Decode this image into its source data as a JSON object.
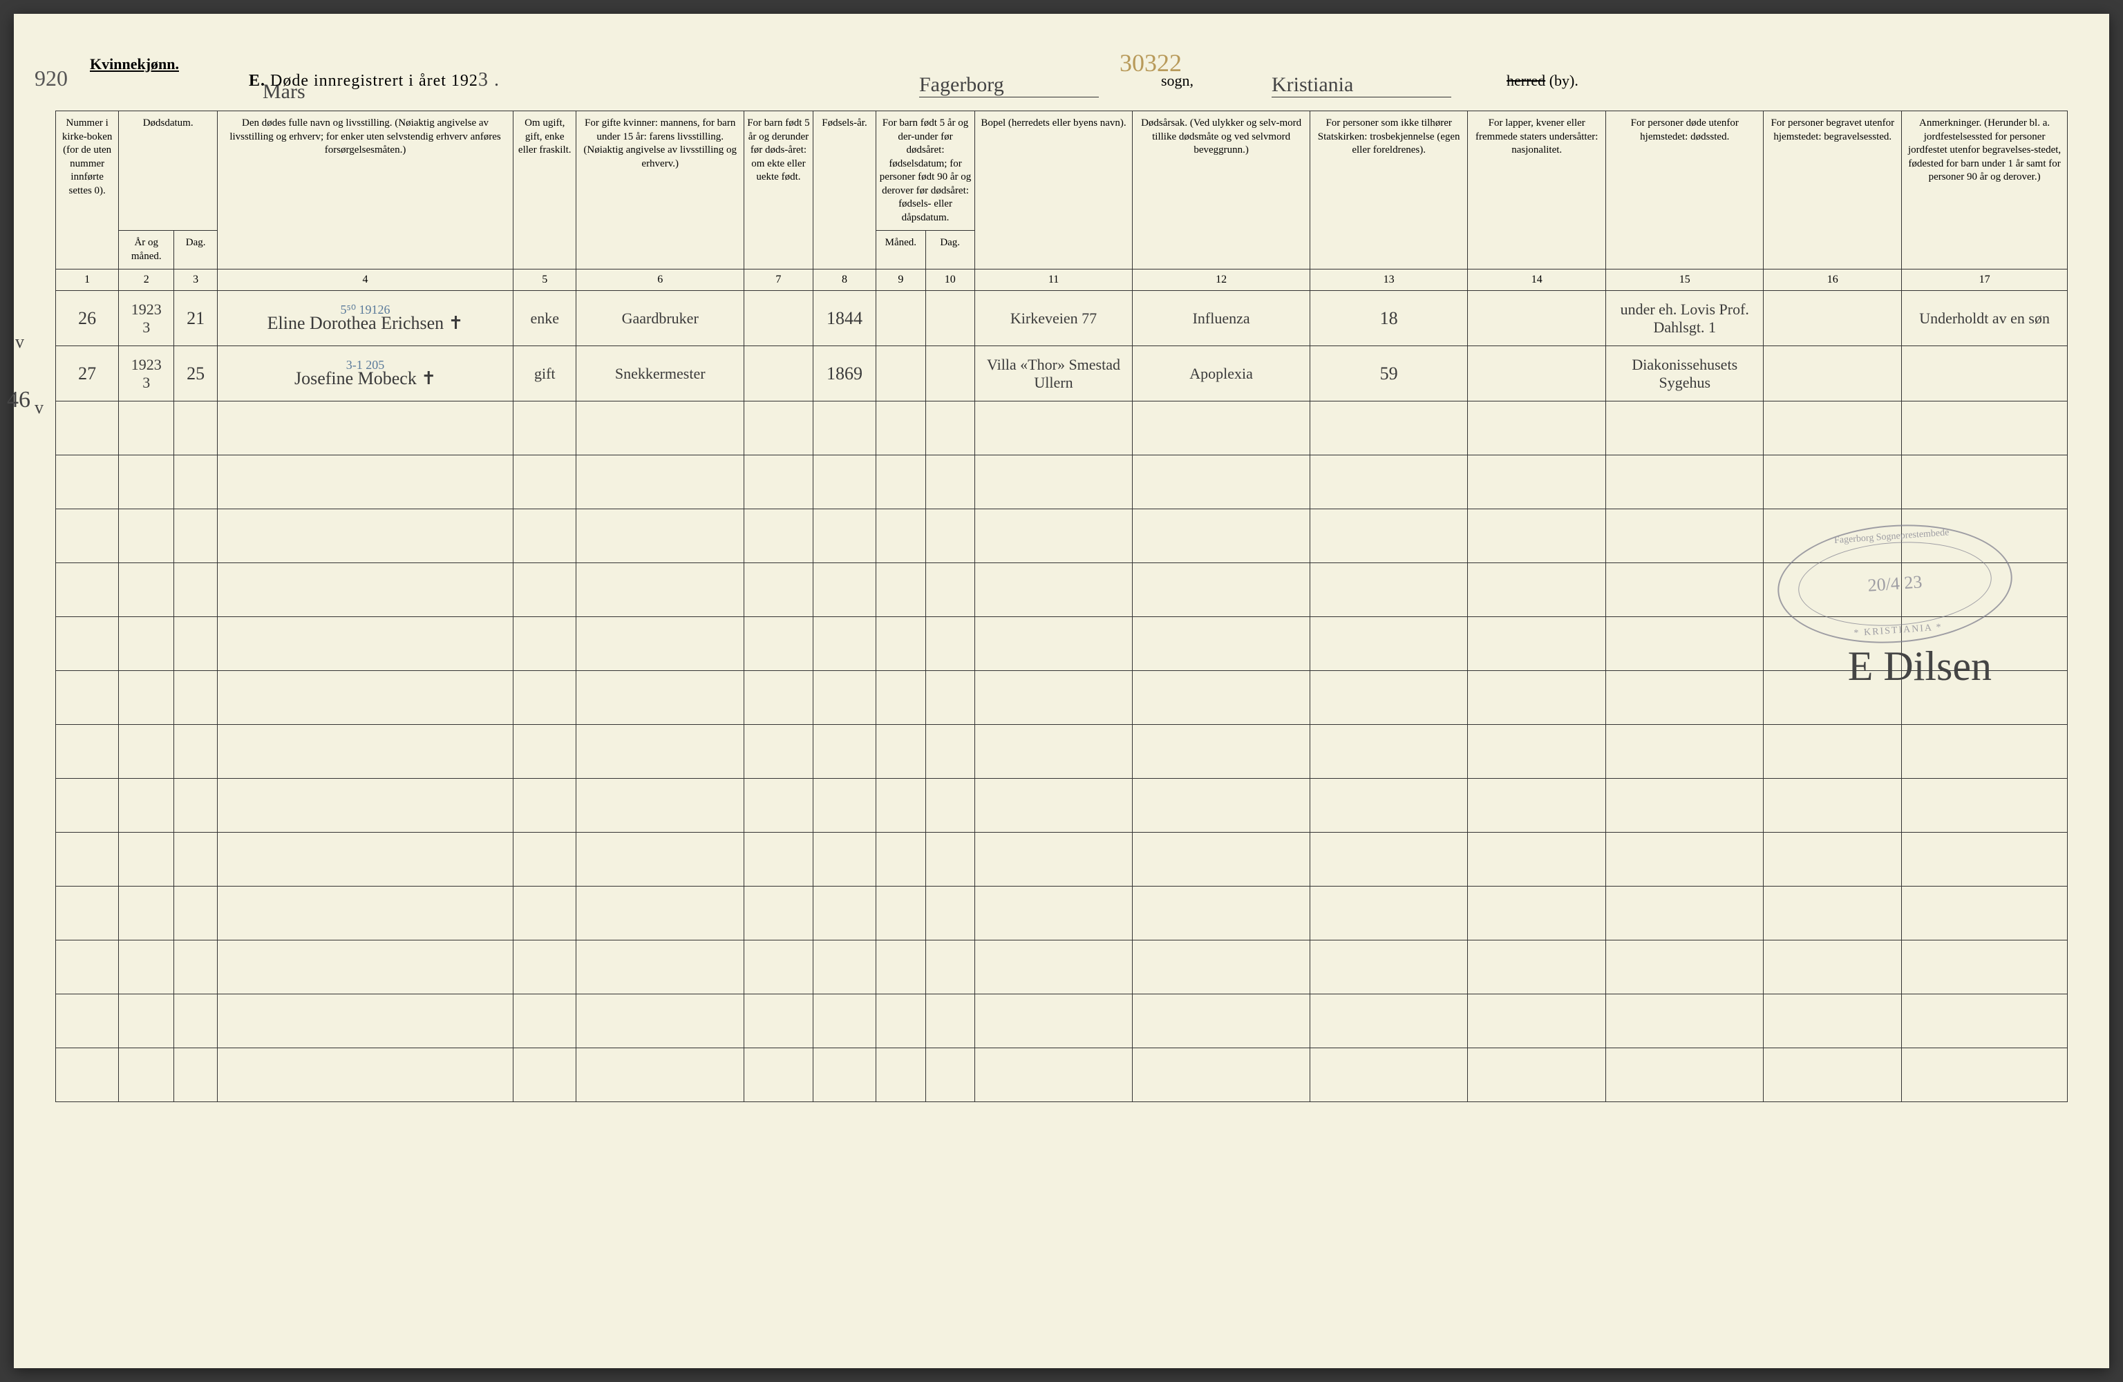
{
  "header": {
    "gender_label": "Kvinnekjønn.",
    "margin_number": "920",
    "title_prefix": "E.",
    "title_text": "Døde innregistrert i året 192",
    "year_suffix_hw": "3 .",
    "month_hw": "Mars",
    "sogn_hw": "Fagerborg",
    "sogn_label": "sogn,",
    "page_number_hw": "30322",
    "herred_hw": "Kristiania",
    "herred_strike": "herred",
    "herred_label": " (by)."
  },
  "columns": {
    "c1": "Nummer i kirke-boken (for de uten nummer innførte settes 0).",
    "c2a": "Dødsdatum.",
    "c2b_year": "År og måned.",
    "c2b_day": "Dag.",
    "c4": "Den dødes fulle navn og livsstilling. (Nøiaktig angivelse av livsstilling og erhverv; for enker uten selvstendig erhverv anføres forsørgelsesmåten.)",
    "c5": "Om ugift, gift, enke eller fraskilt.",
    "c6": "For gifte kvinner: mannens, for barn under 15 år: farens livsstilling. (Nøiaktig angivelse av livsstilling og erhverv.)",
    "c7": "For barn født 5 år og derunder før døds-året: om ekte eller uekte født.",
    "c8": "Fødsels-år.",
    "c9_10": "For barn født 5 år og der-under før dødsåret: fødselsdatum; for personer født 90 år og derover før dødsåret: fødsels- eller dåpsdatum.",
    "c9": "Måned.",
    "c10": "Dag.",
    "c11": "Bopel (herredets eller byens navn).",
    "c12": "Dødsårsak. (Ved ulykker og selv-mord tillike dødsmåte og ved selvmord beveggrunn.)",
    "c13": "For personer som ikke tilhører Statskirken: trosbekjennelse (egen eller foreldrenes).",
    "c14": "For lapper, kvener eller fremmede staters undersåtter: nasjonalitet.",
    "c15": "For personer døde utenfor hjemstedet: dødssted.",
    "c16": "For personer begravet utenfor hjemstedet: begravelsessted.",
    "c17": "Anmerkninger. (Herunder bl. a. jordfestelsessted for personer jordfestet utenfor begravelses-stedet, fødested for barn under 1 år samt for personer 90 år og derover.)"
  },
  "colnums": [
    "1",
    "2",
    "3",
    "4",
    "5",
    "6",
    "7",
    "8",
    "9",
    "10",
    "11",
    "12",
    "13",
    "14",
    "15",
    "16",
    "17"
  ],
  "rows": [
    {
      "margin": "v",
      "margin_num": "",
      "num": "26",
      "year_month": "1923\n3",
      "day": "21",
      "name": "Eline Dorothea Erichsen ✝",
      "name_note": "5⁵⁰    19126",
      "status": "enke",
      "spouse": "Gaardbruker",
      "ekte": "",
      "birthyear": "1844",
      "bm": "",
      "bd": "",
      "bopel": "Kirkeveien 77",
      "cause": "Influenza",
      "tros": "18",
      "nasj": "",
      "dodssted": "under eh. Lovis Prof. Dahlsgt. 1",
      "begrav": "",
      "anm": "Underholdt av en søn"
    },
    {
      "margin": "v",
      "margin_num": "46",
      "num": "27",
      "year_month": "1923\n3",
      "day": "25",
      "name": "Josefine Mobeck ✝",
      "name_note": "3-1         205",
      "status": "gift",
      "spouse": "Snekkermester",
      "ekte": "",
      "birthyear": "1869",
      "bm": "",
      "bd": "",
      "bopel": "Villa «Thor» Smestad Ullern",
      "cause": "Apoplexia",
      "tros": "59",
      "nasj": "",
      "dodssted": "Diakonissehusets Sygehus",
      "begrav": "",
      "anm": ""
    }
  ],
  "stamp": {
    "outer_top": "Fagerborg Sogneprestembede",
    "date": "20/4 23",
    "outer_bottom": "* KRISTIANIA *"
  },
  "signature": "E Dilsen",
  "colors": {
    "paper": "#f4f2e0",
    "ink": "#333333",
    "hw": "#3a3a3a",
    "blue_pencil": "#5a7a9a",
    "stamp": "#7a7a8a",
    "gold_pencil": "#b89a5a"
  },
  "col_widths_pct": [
    3.2,
    2.8,
    2.2,
    15,
    3.2,
    8.5,
    3.5,
    3.2,
    2.5,
    2.5,
    8,
    9,
    8,
    7,
    8,
    7,
    8.4
  ]
}
